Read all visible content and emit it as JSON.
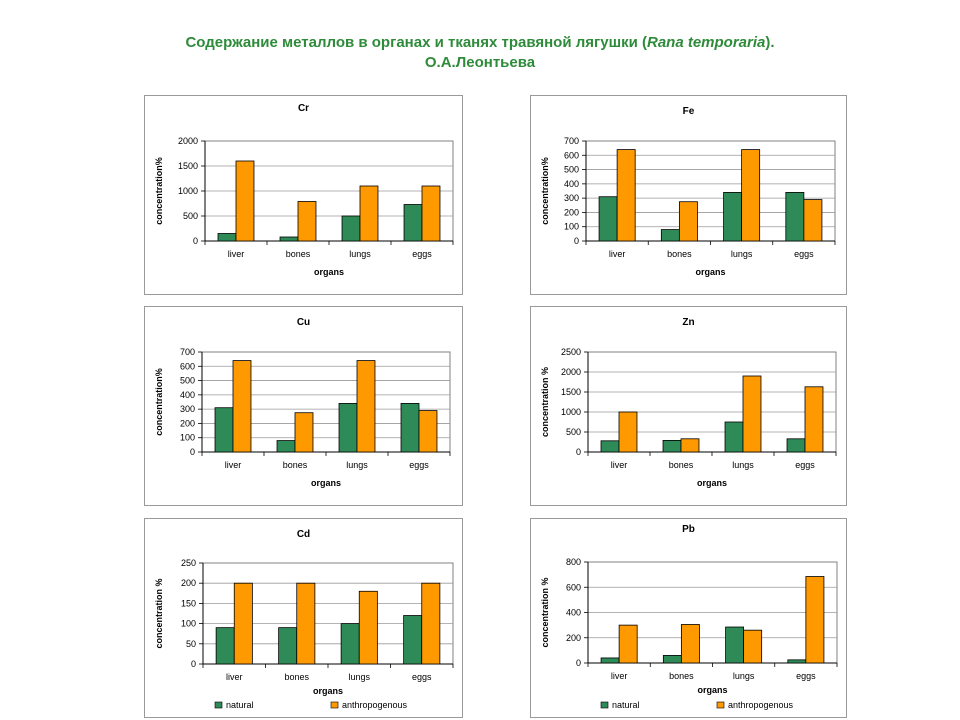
{
  "page": {
    "title_main": "Содержание металлов в органах и тканях травяной лягушки (",
    "title_italic": "Rana temporaria",
    "title_end": ").",
    "author": "О.А.Леонтьева"
  },
  "colors": {
    "natural": "#2e8b57",
    "anthropogenous": "#ff9900",
    "title": "#2e8b3a"
  },
  "chart_data": [
    {
      "id": "cr",
      "type": "bar",
      "title": "Cr",
      "xlabel": "organs",
      "ylabel": "concentration%",
      "categories": [
        "liver",
        "bones",
        "lungs",
        "eggs"
      ],
      "yticks": [
        0,
        500,
        1000,
        1500,
        2000
      ],
      "ylim": [
        0,
        2000
      ],
      "grid": true,
      "series": [
        {
          "name": "natural",
          "values": [
            150,
            80,
            500,
            730
          ]
        },
        {
          "name": "anthropogenous",
          "values": [
            1600,
            790,
            1100,
            1100
          ]
        }
      ]
    },
    {
      "id": "fe",
      "type": "bar",
      "title": "Fe",
      "xlabel": "organs",
      "ylabel": "concentration%",
      "categories": [
        "liver",
        "bones",
        "lungs",
        "eggs"
      ],
      "yticks": [
        0,
        100,
        200,
        300,
        400,
        500,
        600,
        700
      ],
      "ylim": [
        0,
        700
      ],
      "grid": true,
      "series": [
        {
          "name": "natural",
          "values": [
            310,
            80,
            340,
            340
          ]
        },
        {
          "name": "anthropogenous",
          "values": [
            640,
            275,
            640,
            290
          ]
        }
      ]
    },
    {
      "id": "cu",
      "type": "bar",
      "title": "Cu",
      "xlabel": "organs",
      "ylabel": "concentration%",
      "categories": [
        "liver",
        "bones",
        "lungs",
        "eggs"
      ],
      "yticks": [
        0,
        100,
        200,
        300,
        400,
        500,
        600,
        700
      ],
      "ylim": [
        0,
        700
      ],
      "grid": true,
      "series": [
        {
          "name": "natural",
          "values": [
            310,
            80,
            340,
            340
          ]
        },
        {
          "name": "anthropogenous",
          "values": [
            640,
            275,
            640,
            290
          ]
        }
      ]
    },
    {
      "id": "zn",
      "type": "bar",
      "title": "Zn",
      "xlabel": "organs",
      "ylabel": "concentration %",
      "categories": [
        "liver",
        "bones",
        "lungs",
        "eggs"
      ],
      "yticks": [
        0,
        500,
        1000,
        1500,
        2000,
        2500
      ],
      "ylim": [
        0,
        2500
      ],
      "grid": true,
      "series": [
        {
          "name": "natural",
          "values": [
            280,
            290,
            750,
            330
          ]
        },
        {
          "name": "anthropogenous",
          "values": [
            1000,
            330,
            1900,
            1630
          ]
        }
      ]
    },
    {
      "id": "cd",
      "type": "bar",
      "title": "Cd",
      "xlabel": "organs",
      "ylabel": "concentration %",
      "categories": [
        "liver",
        "bones",
        "lungs",
        "eggs"
      ],
      "yticks": [
        0,
        50,
        100,
        150,
        200,
        250
      ],
      "ylim": [
        0,
        250
      ],
      "grid": true,
      "series": [
        {
          "name": "natural",
          "values": [
            90,
            90,
            100,
            120
          ]
        },
        {
          "name": "anthropogenous",
          "values": [
            200,
            200,
            180,
            200
          ]
        }
      ],
      "legend": [
        "natural",
        "anthropogenous"
      ],
      "legend_position": "bottom"
    },
    {
      "id": "pb",
      "type": "bar",
      "title": "Pb",
      "xlabel": "organs",
      "ylabel": "concentration %",
      "categories": [
        "liver",
        "bones",
        "lungs",
        "eggs"
      ],
      "yticks": [
        0,
        200,
        400,
        600,
        800
      ],
      "ylim": [
        0,
        800
      ],
      "grid": true,
      "series": [
        {
          "name": "natural",
          "values": [
            40,
            60,
            285,
            25
          ]
        },
        {
          "name": "anthropogenous",
          "values": [
            300,
            305,
            260,
            685
          ]
        }
      ],
      "legend": [
        "natural",
        "anthropogenous"
      ],
      "legend_position": "bottom"
    }
  ]
}
